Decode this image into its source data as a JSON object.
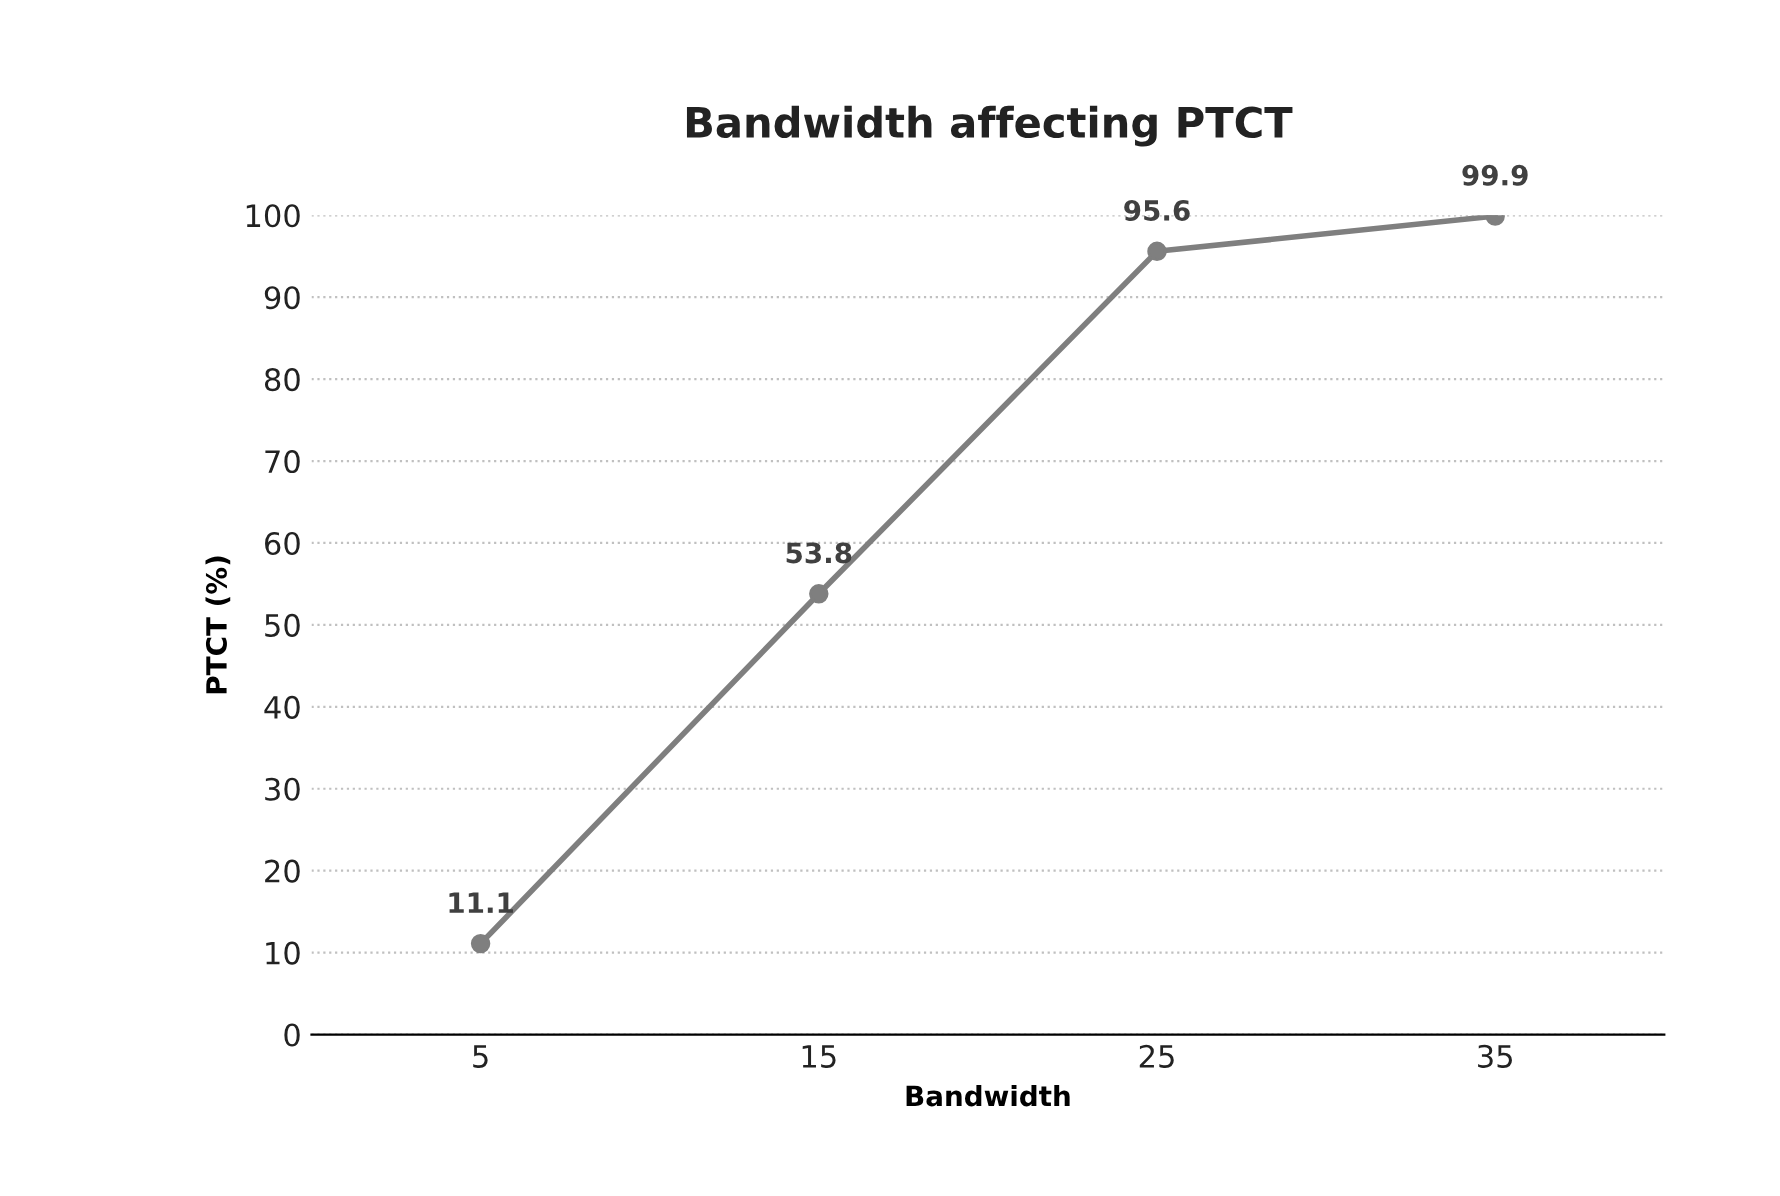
{
  "chart_data": {
    "type": "line",
    "title": "Bandwidth affecting PTCT",
    "xlabel": "Bandwidth",
    "ylabel": "PTCT (%)",
    "categories": [
      "5",
      "15",
      "25",
      "35"
    ],
    "series": [
      {
        "color": "#7f7f7f",
        "values": [
          11.1,
          53.8,
          95.6,
          99.9
        ]
      }
    ],
    "ylim": [
      0,
      100
    ],
    "yticks": [
      0,
      10,
      20,
      30,
      40,
      50,
      60,
      70,
      80,
      90,
      100
    ],
    "grid": "y",
    "marker": "circle",
    "line_style": "solid",
    "data_labels": true,
    "legend": false
  }
}
